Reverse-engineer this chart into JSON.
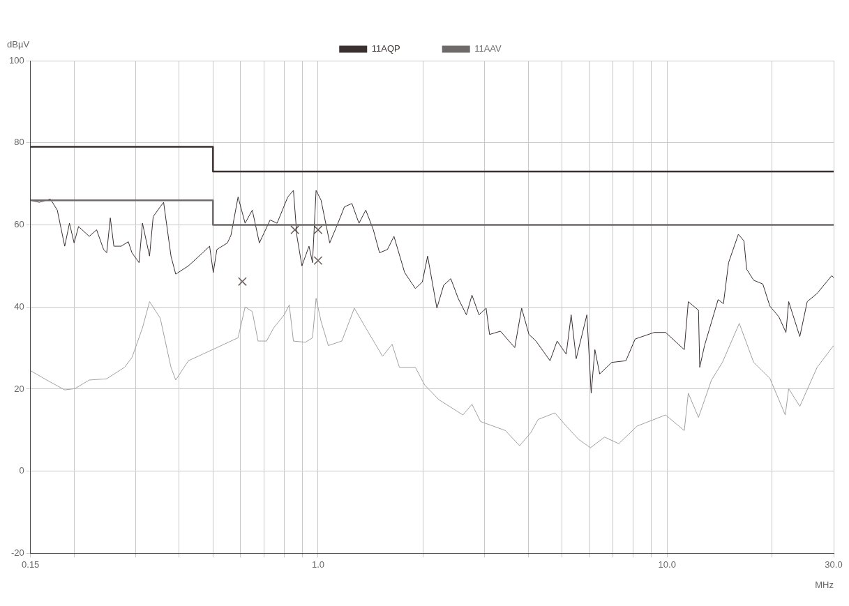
{
  "chart_data": {
    "type": "line",
    "xlabel": "MHz",
    "ylabel": "dBµV",
    "log": "x",
    "grid": true,
    "legend": "top",
    "marker": "none",
    "line_style": "solid",
    "xlim": [
      0.15,
      30
    ],
    "ylim": [
      -20,
      100
    ],
    "xticks": [
      0.15,
      {
        "value": 0.2,
        "label": null
      },
      {
        "value": 0.3,
        "label": null
      },
      {
        "value": 0.4,
        "label": null
      },
      {
        "value": 0.5,
        "label": null
      },
      {
        "value": 0.6,
        "label": null
      },
      {
        "value": 0.7,
        "label": null
      },
      {
        "value": 0.8,
        "label": null
      },
      {
        "value": 0.9,
        "label": null
      },
      {
        "value": 1,
        "label": "1.0"
      },
      {
        "value": 2,
        "label": null
      },
      {
        "value": 3,
        "label": null
      },
      {
        "value": 4,
        "label": null
      },
      {
        "value": 5,
        "label": null
      },
      {
        "value": 6,
        "label": null
      },
      {
        "value": 7,
        "label": null
      },
      {
        "value": 8,
        "label": null
      },
      {
        "value": 9,
        "label": null
      },
      {
        "value": 10,
        "label": "10.0"
      },
      {
        "value": 20,
        "label": null
      },
      {
        "value": 30,
        "label": "30.0"
      }
    ],
    "yticks": [
      -20,
      0,
      20,
      40,
      60,
      80,
      100
    ],
    "series": [
      {
        "name": "11AQP",
        "color": "#3a3030",
        "x": [
          0.15,
          0.5,
          0.5,
          30
        ],
        "values": [
          79,
          79,
          73,
          73
        ]
      },
      {
        "name": "11AAV",
        "color": "#6e6a6a",
        "x": [
          0.15,
          0.5,
          0.5,
          30
        ],
        "values": [
          66,
          66,
          60,
          60
        ]
      },
      {
        "color": "#3b2f2f",
        "x": [
          0.15,
          0.159,
          0.171,
          0.179,
          0.188,
          0.194,
          0.2,
          0.206,
          0.221,
          0.232,
          0.243,
          0.248,
          0.254,
          0.26,
          0.273,
          0.286,
          0.293,
          0.307,
          0.314,
          0.329,
          0.337,
          0.353,
          0.361,
          0.379,
          0.391,
          0.425,
          0.467,
          0.489,
          0.501,
          0.513,
          0.55,
          0.563,
          0.59,
          0.618,
          0.648,
          0.679,
          0.729,
          0.763,
          0.819,
          0.85,
          0.87,
          0.899,
          0.942,
          0.964,
          0.987,
          1.02,
          1.08,
          1.14,
          1.19,
          1.25,
          1.31,
          1.37,
          1.44,
          1.5,
          1.58,
          1.65,
          1.77,
          1.9,
          1.99,
          2.06,
          2.19,
          2.29,
          2.4,
          2.52,
          2.66,
          2.76,
          2.89,
          3.03,
          3.1,
          3.33,
          3.66,
          3.83,
          4.02,
          4.21,
          4.62,
          4.84,
          5.14,
          5.31,
          5.49,
          5.89,
          6.06,
          6.21,
          6.41,
          6.94,
          7.62,
          8.1,
          9.19,
          9.9,
          11.2,
          11.5,
          12.3,
          12.4,
          12.8,
          14.0,
          14.5,
          15.0,
          16.0,
          16.6,
          16.9,
          17.7,
          18.8,
          19.7,
          20.9,
          21.9,
          22.3,
          24.0,
          25.2,
          26.9,
          29.6,
          30
        ],
        "values": [
          66.0,
          65.5,
          66.3,
          63.6,
          54.8,
          60.4,
          55.6,
          59.6,
          57.2,
          58.8,
          54.0,
          53.2,
          61.7,
          54.8,
          54.8,
          55.9,
          53.2,
          50.8,
          60.4,
          52.4,
          62.0,
          64.4,
          65.5,
          52.4,
          48.0,
          50.0,
          53.2,
          54.8,
          48.4,
          54.0,
          55.6,
          57.5,
          66.8,
          60.4,
          63.6,
          55.6,
          61.2,
          60.4,
          66.8,
          68.4,
          57.2,
          50.0,
          54.8,
          50.8,
          68.4,
          66.0,
          55.6,
          60.4,
          64.4,
          65.2,
          60.4,
          63.6,
          58.8,
          53.2,
          54.0,
          57.2,
          48.4,
          44.5,
          46.1,
          52.4,
          39.7,
          45.3,
          46.9,
          42.1,
          38.1,
          42.9,
          38.1,
          39.7,
          33.3,
          34.1,
          30.1,
          39.7,
          33.3,
          31.7,
          26.9,
          31.7,
          28.5,
          38.1,
          27.4,
          38.1,
          19.0,
          29.6,
          23.7,
          26.5,
          26.9,
          32.2,
          33.8,
          33.8,
          29.6,
          41.3,
          39.2,
          25.3,
          30.6,
          41.8,
          40.8,
          50.8,
          57.7,
          56.1,
          49.2,
          46.5,
          45.6,
          40.2,
          37.6,
          33.8,
          41.3,
          32.8,
          41.3,
          43.3,
          47.6,
          47.2
        ]
      },
      {
        "color": "#a4a0a0",
        "x": [
          0.15,
          0.167,
          0.188,
          0.201,
          0.221,
          0.248,
          0.279,
          0.293,
          0.314,
          0.329,
          0.353,
          0.379,
          0.391,
          0.425,
          0.467,
          0.513,
          0.59,
          0.618,
          0.648,
          0.673,
          0.712,
          0.746,
          0.8,
          0.827,
          0.85,
          0.92,
          0.964,
          0.987,
          1.02,
          1.07,
          1.17,
          1.27,
          1.37,
          1.53,
          1.63,
          1.71,
          1.9,
          2.02,
          2.22,
          2.6,
          2.76,
          2.92,
          3.44,
          3.78,
          4.07,
          4.27,
          4.77,
          5.14,
          5.57,
          6.03,
          6.62,
          7.27,
          8.21,
          9.9,
          11.2,
          11.5,
          12.3,
          13.4,
          14.4,
          16.1,
          17.7,
          19.7,
          21.8,
          22.3,
          24.0,
          26.9,
          30
        ],
        "values": [
          24.5,
          22.2,
          19.8,
          20.1,
          22.2,
          22.5,
          25.3,
          27.7,
          34.9,
          41.3,
          37.3,
          25.3,
          22.2,
          26.9,
          28.5,
          30.1,
          32.5,
          40.0,
          38.9,
          31.7,
          31.7,
          34.9,
          38.1,
          40.5,
          31.7,
          31.4,
          32.5,
          42.1,
          36.5,
          30.6,
          31.7,
          39.7,
          34.9,
          28.0,
          30.9,
          25.3,
          25.3,
          21.0,
          17.4,
          13.7,
          16.3,
          12.1,
          9.9,
          6.2,
          9.4,
          12.6,
          14.2,
          11.0,
          7.8,
          5.7,
          8.3,
          6.7,
          11.0,
          13.7,
          9.9,
          19.0,
          13.1,
          22.2,
          26.5,
          36.0,
          26.5,
          22.6,
          13.7,
          20.1,
          15.8,
          25.3,
          30.6
        ]
      },
      {
        "type": "scatter",
        "marker": "cross",
        "color": "#6b5a5a",
        "x": [
          0.607,
          0.858,
          1.0,
          1.0
        ],
        "values": [
          46.2,
          58.8,
          58.8,
          51.3
        ]
      }
    ]
  }
}
